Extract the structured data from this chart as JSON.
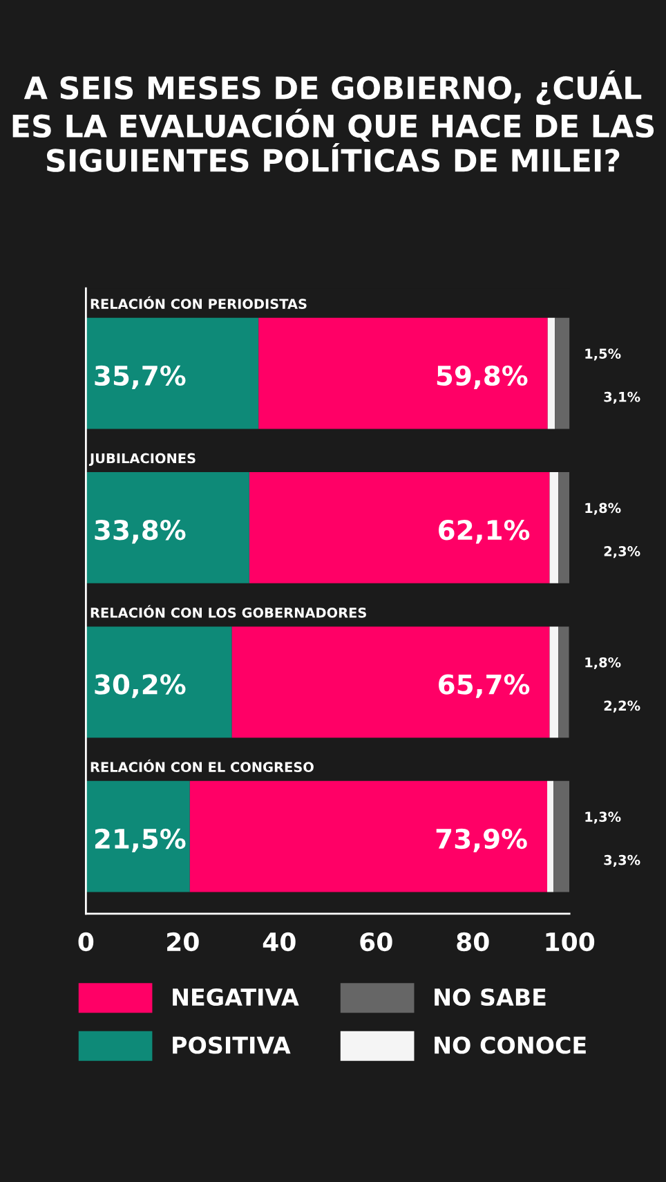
{
  "chart_data": {
    "type": "bar",
    "orientation": "horizontal",
    "stacked": true,
    "title": "A SEIS MESES DE GOBIERNO, ¿CUÁL ES LA EVALUACIÓN QUE HACE DE LAS SIGUIENTES POLÍTICAS DE MILEI?",
    "categories": [
      "RELACIÓN CON PERIODISTAS",
      "JUBILACIONES",
      "RELACIÓN CON LOS GOBERNADORES",
      "RELACIÓN CON EL CONGRESO"
    ],
    "series": [
      {
        "name": "POSITIVA",
        "color": "#0e8a78",
        "values": [
          35.7,
          33.8,
          30.2,
          21.5
        ],
        "value_labels": [
          "35,7%",
          "33,8%",
          "30,2%",
          "21,5%"
        ]
      },
      {
        "name": "NEGATIVA",
        "color": "#ff0066",
        "values": [
          59.8,
          62.1,
          65.7,
          73.9
        ],
        "value_labels": [
          "59,8%",
          "62,1%",
          "65,7%",
          "73,9%"
        ]
      },
      {
        "name": "NO CONOCE",
        "color": "#f5f5f5",
        "values": [
          1.5,
          1.8,
          1.8,
          1.3
        ],
        "value_labels": [
          "1,5%",
          "1,8%",
          "1,8%",
          "1,3%"
        ]
      },
      {
        "name": "NO SABE",
        "color": "#666666",
        "values": [
          3.1,
          2.3,
          2.2,
          3.3
        ],
        "value_labels": [
          "3,1%",
          "2,3%",
          "2,2%",
          "3,3%"
        ]
      }
    ],
    "xlim": [
      0,
      100
    ],
    "xticks": [
      0,
      20,
      40,
      60,
      80,
      100
    ],
    "tick_labels": "x",
    "grid": false,
    "legend": "bottom"
  }
}
